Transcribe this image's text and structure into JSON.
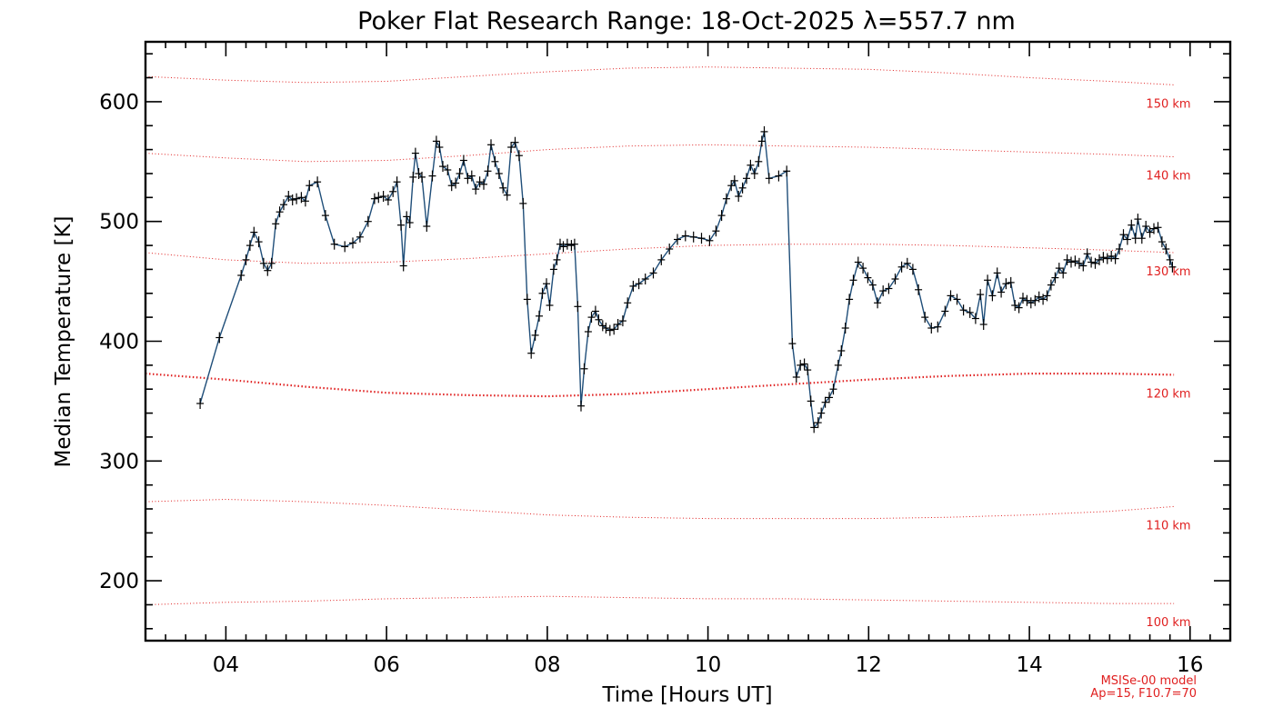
{
  "chart_data": {
    "type": "line",
    "title": "Poker Flat Research Range: 18-Oct-2025 λ=557.7 nm",
    "xlabel": "Time [Hours UT]",
    "ylabel": "Median Temperature [K]",
    "xlim": [
      3.0,
      16.5
    ],
    "ylim": [
      150,
      650
    ],
    "x_ticks": [
      4,
      6,
      8,
      10,
      12,
      14,
      16
    ],
    "x_tick_labels": [
      "04",
      "06",
      "08",
      "10",
      "12",
      "14",
      "16"
    ],
    "y_ticks": [
      200,
      300,
      400,
      500,
      600
    ],
    "y_tick_labels": [
      "200",
      "300",
      "400",
      "500",
      "600"
    ],
    "annotation": [
      "MSISe-00 model",
      "Ap=15, F10.7=70"
    ],
    "colors": {
      "data": "#000000",
      "line": "#1f4e79",
      "model": "#e02020",
      "axis": "#000000"
    },
    "series": [
      {
        "name": "Median Temperature",
        "marker": "plus",
        "points": [
          [
            3.68,
            348
          ],
          [
            3.92,
            403
          ],
          [
            4.19,
            455
          ],
          [
            4.25,
            468
          ],
          [
            4.3,
            480
          ],
          [
            4.35,
            491
          ],
          [
            4.41,
            483
          ],
          [
            4.47,
            465
          ],
          [
            4.52,
            459
          ],
          [
            4.57,
            465
          ],
          [
            4.62,
            498
          ],
          [
            4.67,
            508
          ],
          [
            4.72,
            514
          ],
          [
            4.78,
            521
          ],
          [
            4.83,
            518
          ],
          [
            4.88,
            519
          ],
          [
            4.94,
            520
          ],
          [
            4.99,
            517
          ],
          [
            5.04,
            530
          ],
          [
            5.14,
            533
          ],
          [
            5.24,
            505
          ],
          [
            5.35,
            481
          ],
          [
            5.48,
            479
          ],
          [
            5.58,
            482
          ],
          [
            5.67,
            487
          ],
          [
            5.77,
            500
          ],
          [
            5.85,
            519
          ],
          [
            5.9,
            520
          ],
          [
            5.96,
            521
          ],
          [
            6.02,
            518
          ],
          [
            6.08,
            525
          ],
          [
            6.13,
            533
          ],
          [
            6.18,
            497
          ],
          [
            6.21,
            463
          ],
          [
            6.25,
            504
          ],
          [
            6.29,
            499
          ],
          [
            6.33,
            537
          ],
          [
            6.36,
            557
          ],
          [
            6.4,
            540
          ],
          [
            6.44,
            537
          ],
          [
            6.5,
            496
          ],
          [
            6.57,
            538
          ],
          [
            6.62,
            567
          ],
          [
            6.66,
            562
          ],
          [
            6.7,
            546
          ],
          [
            6.76,
            543
          ],
          [
            6.81,
            530
          ],
          [
            6.86,
            532
          ],
          [
            6.91,
            540
          ],
          [
            6.96,
            551
          ],
          [
            7.01,
            536
          ],
          [
            7.06,
            538
          ],
          [
            7.11,
            527
          ],
          [
            7.16,
            533
          ],
          [
            7.21,
            531
          ],
          [
            7.26,
            542
          ],
          [
            7.3,
            564
          ],
          [
            7.35,
            550
          ],
          [
            7.4,
            540
          ],
          [
            7.45,
            528
          ],
          [
            7.5,
            522
          ],
          [
            7.55,
            562
          ],
          [
            7.6,
            566
          ],
          [
            7.65,
            555
          ],
          [
            7.7,
            515
          ],
          [
            7.75,
            435
          ],
          [
            7.8,
            390
          ],
          [
            7.85,
            405
          ],
          [
            7.9,
            421
          ],
          [
            7.94,
            440
          ],
          [
            7.99,
            448
          ],
          [
            8.03,
            430
          ],
          [
            8.08,
            460
          ],
          [
            8.12,
            468
          ],
          [
            8.16,
            481
          ],
          [
            8.2,
            479
          ],
          [
            8.25,
            481
          ],
          [
            8.3,
            480
          ],
          [
            8.34,
            481
          ],
          [
            8.38,
            429
          ],
          [
            8.42,
            346
          ],
          [
            8.46,
            377
          ],
          [
            8.51,
            408
          ],
          [
            8.55,
            420
          ],
          [
            8.6,
            425
          ],
          [
            8.64,
            418
          ],
          [
            8.69,
            413
          ],
          [
            8.73,
            411
          ],
          [
            8.78,
            409
          ],
          [
            8.83,
            410
          ],
          [
            8.88,
            414
          ],
          [
            8.94,
            417
          ],
          [
            9.0,
            432
          ],
          [
            9.07,
            446
          ],
          [
            9.14,
            448
          ],
          [
            9.22,
            452
          ],
          [
            9.32,
            457
          ],
          [
            9.42,
            468
          ],
          [
            9.52,
            477
          ],
          [
            9.62,
            485
          ],
          [
            9.72,
            488
          ],
          [
            9.82,
            487
          ],
          [
            9.92,
            486
          ],
          [
            10.02,
            484
          ],
          [
            10.1,
            492
          ],
          [
            10.17,
            505
          ],
          [
            10.23,
            519
          ],
          [
            10.29,
            530
          ],
          [
            10.33,
            534
          ],
          [
            10.38,
            521
          ],
          [
            10.43,
            528
          ],
          [
            10.48,
            536
          ],
          [
            10.53,
            547
          ],
          [
            10.58,
            540
          ],
          [
            10.63,
            550
          ],
          [
            10.67,
            567
          ],
          [
            10.7,
            575
          ],
          [
            10.76,
            536
          ],
          [
            10.88,
            538
          ],
          [
            10.98,
            542
          ],
          [
            11.05,
            398
          ],
          [
            11.1,
            370
          ],
          [
            11.15,
            380
          ],
          [
            11.2,
            381
          ],
          [
            11.24,
            376
          ],
          [
            11.28,
            350
          ],
          [
            11.32,
            328
          ],
          [
            11.37,
            332
          ],
          [
            11.41,
            340
          ],
          [
            11.46,
            349
          ],
          [
            11.51,
            353
          ],
          [
            11.56,
            360
          ],
          [
            11.62,
            380
          ],
          [
            11.66,
            392
          ],
          [
            11.71,
            411
          ],
          [
            11.76,
            435
          ],
          [
            11.81,
            451
          ],
          [
            11.87,
            466
          ],
          [
            11.93,
            461
          ],
          [
            11.99,
            453
          ],
          [
            12.05,
            447
          ],
          [
            12.11,
            432
          ],
          [
            12.18,
            442
          ],
          [
            12.25,
            444
          ],
          [
            12.33,
            452
          ],
          [
            12.41,
            462
          ],
          [
            12.48,
            465
          ],
          [
            12.55,
            460
          ],
          [
            12.62,
            443
          ],
          [
            12.7,
            420
          ],
          [
            12.78,
            411
          ],
          [
            12.86,
            412
          ],
          [
            12.95,
            425
          ],
          [
            13.02,
            438
          ],
          [
            13.1,
            435
          ],
          [
            13.18,
            426
          ],
          [
            13.26,
            424
          ],
          [
            13.33,
            419
          ],
          [
            13.39,
            439
          ],
          [
            13.43,
            414
          ],
          [
            13.48,
            451
          ],
          [
            13.54,
            438
          ],
          [
            13.6,
            457
          ],
          [
            13.65,
            441
          ],
          [
            13.71,
            448
          ],
          [
            13.77,
            449
          ],
          [
            13.82,
            430
          ],
          [
            13.87,
            428
          ],
          [
            13.92,
            436
          ],
          [
            13.97,
            434
          ],
          [
            14.02,
            432
          ],
          [
            14.07,
            434
          ],
          [
            14.12,
            437
          ],
          [
            14.17,
            435
          ],
          [
            14.22,
            438
          ],
          [
            14.27,
            447
          ],
          [
            14.32,
            453
          ],
          [
            14.37,
            461
          ],
          [
            14.42,
            457
          ],
          [
            14.47,
            468
          ],
          [
            14.52,
            466
          ],
          [
            14.57,
            467
          ],
          [
            14.62,
            465
          ],
          [
            14.67,
            463
          ],
          [
            14.72,
            473
          ],
          [
            14.77,
            466
          ],
          [
            14.82,
            465
          ],
          [
            14.87,
            468
          ],
          [
            14.92,
            470
          ],
          [
            14.97,
            469
          ],
          [
            15.02,
            471
          ],
          [
            15.07,
            469
          ],
          [
            15.12,
            477
          ],
          [
            15.17,
            489
          ],
          [
            15.22,
            485
          ],
          [
            15.27,
            497
          ],
          [
            15.32,
            486
          ],
          [
            15.35,
            502
          ],
          [
            15.4,
            486
          ],
          [
            15.45,
            496
          ],
          [
            15.5,
            491
          ],
          [
            15.55,
            494
          ],
          [
            15.6,
            495
          ],
          [
            15.65,
            483
          ],
          [
            15.7,
            477
          ],
          [
            15.75,
            468
          ],
          [
            15.78,
            462
          ]
        ]
      }
    ],
    "model_lines": [
      {
        "label": "100 km",
        "x": [
          3.0,
          4.0,
          5.0,
          6.0,
          7.0,
          8.0,
          9.0,
          10.0,
          11.0,
          12.0,
          13.0,
          14.0,
          15.0,
          15.8
        ],
        "y": [
          180,
          182,
          183,
          185,
          186,
          187,
          186,
          185,
          185,
          184,
          183,
          182,
          181,
          181
        ]
      },
      {
        "label": "110 km",
        "x": [
          3.0,
          4.0,
          5.0,
          6.0,
          7.0,
          8.0,
          9.0,
          10.0,
          11.0,
          12.0,
          13.0,
          14.0,
          15.0,
          15.8
        ],
        "y": [
          266,
          268,
          266,
          263,
          259,
          255,
          253,
          252,
          252,
          252,
          253,
          255,
          258,
          262
        ]
      },
      {
        "label": "120 km",
        "x": [
          3.0,
          4.0,
          5.0,
          6.0,
          7.0,
          8.0,
          9.0,
          10.0,
          11.0,
          12.0,
          13.0,
          14.0,
          15.0,
          15.8
        ],
        "y": [
          373,
          368,
          362,
          357,
          355,
          354,
          356,
          360,
          364,
          368,
          371,
          373,
          373,
          372
        ]
      },
      {
        "label": "130 km",
        "x": [
          3.0,
          4.0,
          5.0,
          6.0,
          7.0,
          8.0,
          9.0,
          10.0,
          11.0,
          12.0,
          13.0,
          14.0,
          15.0,
          15.8
        ],
        "y": [
          474,
          468,
          465,
          466,
          469,
          473,
          477,
          480,
          481,
          481,
          480,
          478,
          476,
          474
        ]
      },
      {
        "label": "140 km",
        "x": [
          3.0,
          4.0,
          5.0,
          6.0,
          7.0,
          8.0,
          9.0,
          10.0,
          11.0,
          12.0,
          13.0,
          14.0,
          15.0,
          15.8
        ],
        "y": [
          557,
          553,
          550,
          551,
          555,
          560,
          563,
          564,
          563,
          562,
          560,
          558,
          556,
          554
        ]
      },
      {
        "label": "150 km",
        "x": [
          3.0,
          4.0,
          5.0,
          6.0,
          7.0,
          8.0,
          9.0,
          10.0,
          11.0,
          12.0,
          13.0,
          14.0,
          15.0,
          15.8
        ],
        "y": [
          621,
          618,
          616,
          617,
          621,
          625,
          628,
          629,
          628,
          627,
          624,
          620,
          617,
          614
        ]
      }
    ]
  }
}
